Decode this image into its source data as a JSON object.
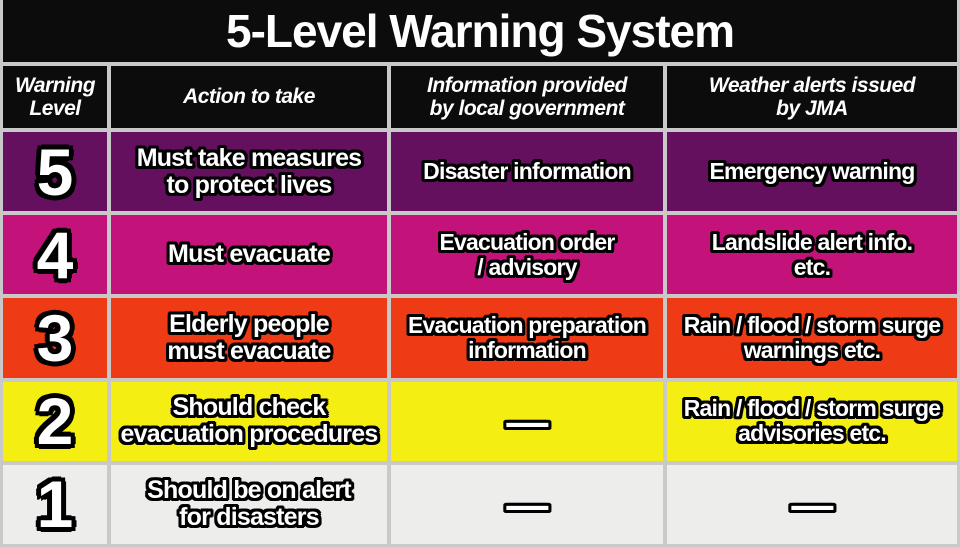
{
  "title": "5-Level Warning System",
  "colors": {
    "title_bg": "#0C0C0C",
    "header_bg": "#0C0C0C",
    "grid_line": "#C9C9C9",
    "text": "#FFFFFF",
    "text_outline": "#000000",
    "level_5": "#65105E",
    "level_4": "#C3137B",
    "level_3": "#EE3B16",
    "level_2": "#F4EE13",
    "level_1": "#EDEDEB"
  },
  "columns": [
    {
      "label": "Warning\nLevel"
    },
    {
      "label": "Action to take"
    },
    {
      "label": "Information provided\nby local government"
    },
    {
      "label": "Weather alerts issued\nby JMA"
    }
  ],
  "rows": [
    {
      "level": "5",
      "color": "#65105E",
      "action": "Must take measures\nto protect lives",
      "local_government": "Disaster information",
      "jma": "Emergency warning"
    },
    {
      "level": "4",
      "color": "#C3137B",
      "action": "Must evacuate",
      "local_government": "Evacuation order\n/ advisory",
      "jma": "Landslide alert info.\netc."
    },
    {
      "level": "3",
      "color": "#EE3B16",
      "action": "Elderly people\nmust evacuate",
      "local_government": "Evacuation preparation\ninformation",
      "jma": "Rain / flood / storm surge\nwarnings etc."
    },
    {
      "level": "2",
      "color": "#F4EE13",
      "action": "Should check\nevacuation procedures",
      "local_government": "—",
      "jma": "Rain / flood / storm surge\nadvisories etc."
    },
    {
      "level": "1",
      "color": "#EDEDEB",
      "action": "Should be on alert\nfor disasters",
      "local_government": "—",
      "jma": "—"
    }
  ]
}
